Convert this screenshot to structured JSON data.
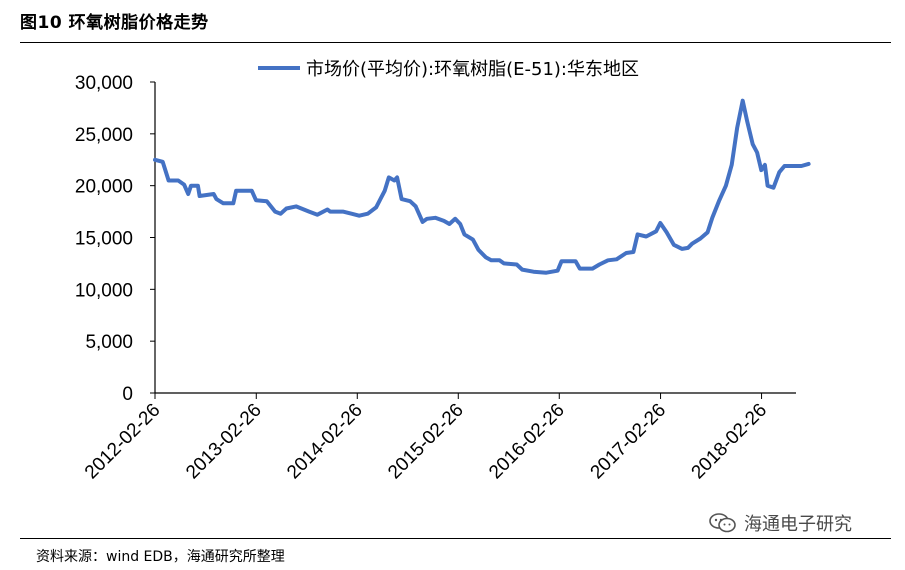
{
  "figure": {
    "title": "图10 环氧树脂价格走势",
    "source": "资料来源：wind EDB，海通研究所整理",
    "watermark": "海通电子研究"
  },
  "colors": {
    "line": "#4472C4",
    "axis": "#000000"
  },
  "chart_data": {
    "type": "line",
    "title": "",
    "xlabel": "",
    "ylabel": "",
    "ylim": [
      0,
      30000
    ],
    "yticks": [
      "0",
      "5,000",
      "10,000",
      "15,000",
      "20,000",
      "25,000",
      "30,000"
    ],
    "xlim": [
      "2012-02-26",
      "2018-08-15"
    ],
    "xticks": [
      "2012-02-26",
      "2013-02-26",
      "2014-02-26",
      "2015-02-26",
      "2016-02-26",
      "2017-02-26",
      "2018-02-26"
    ],
    "grid": false,
    "legend": "top",
    "series": [
      {
        "name": "市场价(平均价):环氧树脂(E-51):华东地区",
        "points": [
          [
            "2012-02-26",
            22500
          ],
          [
            "2012-03-25",
            22300
          ],
          [
            "2012-04-15",
            20500
          ],
          [
            "2012-05-20",
            20500
          ],
          [
            "2012-06-10",
            20100
          ],
          [
            "2012-06-25",
            19200
          ],
          [
            "2012-07-05",
            20000
          ],
          [
            "2012-07-30",
            20000
          ],
          [
            "2012-08-05",
            19000
          ],
          [
            "2012-09-25",
            19200
          ],
          [
            "2012-10-05",
            18700
          ],
          [
            "2012-10-30",
            18300
          ],
          [
            "2012-12-05",
            18300
          ],
          [
            "2012-12-15",
            19500
          ],
          [
            "2013-02-10",
            19500
          ],
          [
            "2013-02-25",
            18600
          ],
          [
            "2013-04-05",
            18500
          ],
          [
            "2013-05-05",
            17500
          ],
          [
            "2013-05-25",
            17300
          ],
          [
            "2013-06-15",
            17800
          ],
          [
            "2013-07-20",
            18000
          ],
          [
            "2013-09-05",
            17500
          ],
          [
            "2013-10-05",
            17200
          ],
          [
            "2013-11-10",
            17700
          ],
          [
            "2013-11-20",
            17500
          ],
          [
            "2014-01-05",
            17500
          ],
          [
            "2014-02-05",
            17300
          ],
          [
            "2014-03-05",
            17100
          ],
          [
            "2014-04-05",
            17300
          ],
          [
            "2014-05-05",
            17900
          ],
          [
            "2014-06-05",
            19500
          ],
          [
            "2014-06-20",
            20800
          ],
          [
            "2014-07-10",
            20500
          ],
          [
            "2014-07-20",
            20800
          ],
          [
            "2014-08-05",
            18700
          ],
          [
            "2014-09-05",
            18500
          ],
          [
            "2014-09-25",
            18000
          ],
          [
            "2014-10-20",
            16500
          ],
          [
            "2014-11-05",
            16800
          ],
          [
            "2014-12-05",
            16900
          ],
          [
            "2015-01-05",
            16600
          ],
          [
            "2015-01-25",
            16300
          ],
          [
            "2015-02-15",
            16800
          ],
          [
            "2015-03-05",
            16300
          ],
          [
            "2015-03-20",
            15300
          ],
          [
            "2015-04-20",
            14800
          ],
          [
            "2015-05-10",
            13800
          ],
          [
            "2015-06-05",
            13100
          ],
          [
            "2015-06-25",
            12800
          ],
          [
            "2015-07-25",
            12800
          ],
          [
            "2015-08-10",
            12500
          ],
          [
            "2015-09-25",
            12400
          ],
          [
            "2015-10-15",
            11900
          ],
          [
            "2015-11-25",
            11700
          ],
          [
            "2016-01-10",
            11600
          ],
          [
            "2016-02-20",
            11800
          ],
          [
            "2016-03-05",
            12700
          ],
          [
            "2016-04-25",
            12700
          ],
          [
            "2016-05-10",
            12000
          ],
          [
            "2016-06-25",
            12000
          ],
          [
            "2016-07-20",
            12400
          ],
          [
            "2016-08-20",
            12800
          ],
          [
            "2016-09-20",
            12900
          ],
          [
            "2016-10-25",
            13500
          ],
          [
            "2016-11-20",
            13600
          ],
          [
            "2016-12-05",
            15300
          ],
          [
            "2017-01-05",
            15100
          ],
          [
            "2017-02-10",
            15600
          ],
          [
            "2017-02-25",
            16400
          ],
          [
            "2017-03-20",
            15500
          ],
          [
            "2017-04-15",
            14300
          ],
          [
            "2017-05-15",
            13900
          ],
          [
            "2017-06-05",
            14000
          ],
          [
            "2017-06-20",
            14400
          ],
          [
            "2017-07-20",
            14900
          ],
          [
            "2017-08-15",
            15500
          ],
          [
            "2017-09-01",
            16900
          ],
          [
            "2017-09-25",
            18500
          ],
          [
            "2017-10-20",
            20000
          ],
          [
            "2017-11-10",
            22000
          ],
          [
            "2017-11-30",
            25600
          ],
          [
            "2017-12-20",
            28200
          ],
          [
            "2018-01-05",
            26200
          ],
          [
            "2018-01-25",
            24000
          ],
          [
            "2018-02-10",
            23200
          ],
          [
            "2018-02-25",
            21500
          ],
          [
            "2018-03-10",
            22000
          ],
          [
            "2018-03-20",
            20000
          ],
          [
            "2018-04-10",
            19800
          ],
          [
            "2018-05-01",
            21300
          ],
          [
            "2018-05-20",
            21900
          ],
          [
            "2018-06-15",
            21900
          ],
          [
            "2018-07-20",
            21900
          ],
          [
            "2018-08-15",
            22100
          ]
        ]
      }
    ]
  }
}
